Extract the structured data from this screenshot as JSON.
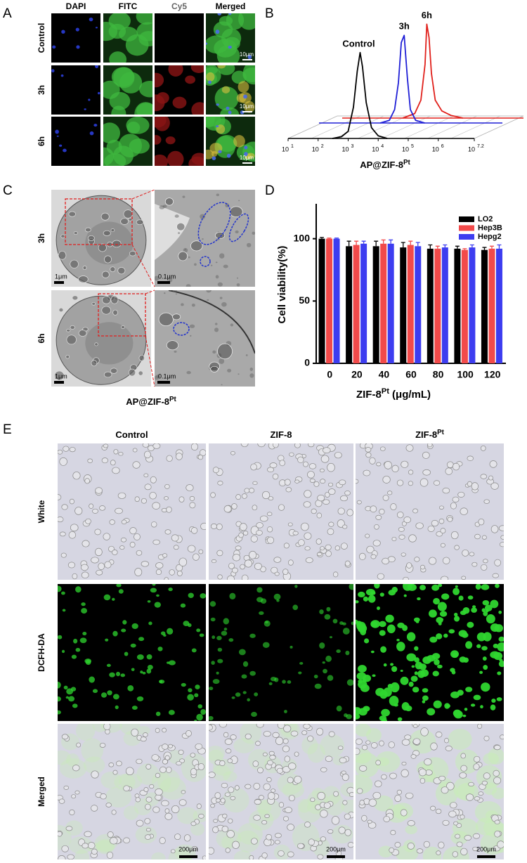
{
  "panels": {
    "a": {
      "letter": "A",
      "columns": [
        "DAPI",
        "FITC",
        "Cy5",
        "Merged"
      ],
      "rows": [
        "Control",
        "3h",
        "6h"
      ],
      "scale_bar": "10μm"
    },
    "b": {
      "letter": "B"
    },
    "c": {
      "letter": "C",
      "rows": [
        "3h",
        "6h"
      ],
      "scale_bars": [
        "1μm",
        "0.1μm"
      ],
      "label": "AP@ZIF-8",
      "label_sup": "Pt"
    },
    "d": {
      "letter": "D"
    },
    "e": {
      "letter": "E",
      "columns": [
        {
          "text": "Control"
        },
        {
          "text": "ZIF-8"
        },
        {
          "text": "ZIF-8",
          "sup": "Pt"
        }
      ],
      "rows": [
        "White",
        "DCFH-DA",
        "Merged"
      ],
      "scale_bar": "200μm"
    }
  },
  "chart_data": [
    {
      "type": "line",
      "xlabel": "AP@ZIF-8",
      "xlabel_sup": "Pt",
      "log_x": true,
      "xlim": [
        10,
        15848932
      ],
      "ylim": [
        0,
        110
      ],
      "xticks": [
        {
          "value": 10,
          "label": "10",
          "exponent": "1"
        },
        {
          "value": 100,
          "label": "10",
          "exponent": "2"
        },
        {
          "value": 1000,
          "label": "10",
          "exponent": "3"
        },
        {
          "value": 10000,
          "label": "10",
          "exponent": "4"
        },
        {
          "value": 100000,
          "label": "10",
          "exponent": "5"
        },
        {
          "value": 1000000,
          "label": "10",
          "exponent": "6"
        },
        {
          "value": 15848932,
          "label": "10",
          "exponent": "7.2"
        }
      ],
      "series": [
        {
          "name": "Control",
          "color": "#000000",
          "x": [
            300,
            600,
            1000,
            1500,
            2000,
            2500,
            3000,
            4000,
            6000,
            10000,
            20000
          ],
          "values": [
            0,
            2,
            8,
            35,
            75,
            96,
            80,
            40,
            12,
            3,
            0
          ]
        },
        {
          "name": "3h",
          "color": "#1f1fd6",
          "x": [
            4000,
            8000,
            12000,
            16000,
            20000,
            25000,
            32000,
            40000,
            60000,
            120000
          ],
          "values": [
            0,
            3,
            15,
            45,
            90,
            98,
            50,
            15,
            3,
            0
          ]
        },
        {
          "name": "6h",
          "color": "#e0201b",
          "x": [
            10000,
            25000,
            40000,
            55000,
            63000,
            75000,
            90000,
            120000,
            200000,
            400000,
            1000000
          ],
          "values": [
            0,
            5,
            20,
            60,
            105,
            90,
            50,
            20,
            8,
            3,
            0
          ]
        }
      ]
    },
    {
      "type": "bar",
      "xlabel": "ZIF-8",
      "xlabel_sup": "Pt",
      "xlabel_unit": "(μg/mL)",
      "ylabel": "Cell viability(%)",
      "categories": [
        "0",
        "20",
        "40",
        "60",
        "80",
        "100",
        "120"
      ],
      "ylim": [
        0,
        128
      ],
      "yticks": [
        0,
        50,
        100
      ],
      "legend": "top-right",
      "series": [
        {
          "name": "LO2",
          "color": "#000000",
          "values": [
            100,
            94,
            94,
            93,
            92,
            92,
            91
          ],
          "errors": [
            1,
            4,
            4,
            4,
            3,
            2,
            2
          ]
        },
        {
          "name": "Hep3B",
          "color": "#f24a4a",
          "values": [
            100,
            95,
            96,
            95,
            92,
            91,
            92
          ],
          "errors": [
            0.5,
            3,
            3,
            3,
            2,
            1,
            2
          ]
        },
        {
          "name": "Hepg2",
          "color": "#3d3df0",
          "values": [
            100,
            96,
            96,
            94,
            93,
            93,
            92
          ],
          "errors": [
            0.5,
            2,
            3,
            3,
            2,
            2,
            3
          ]
        }
      ]
    }
  ]
}
